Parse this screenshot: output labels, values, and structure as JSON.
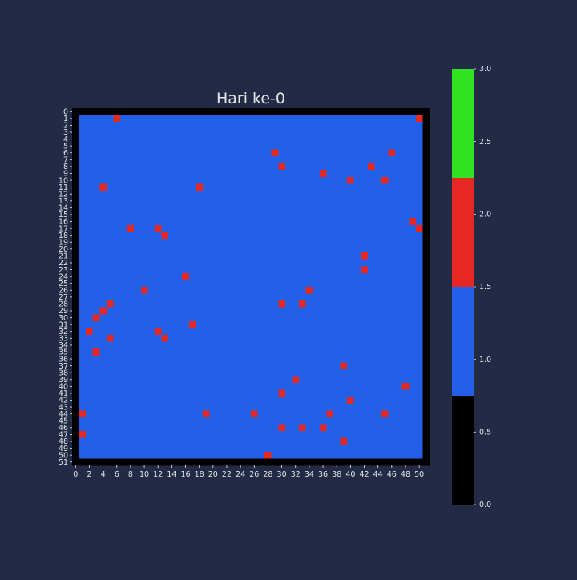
{
  "chart_data": {
    "type": "heatmap",
    "title": "Hari ke-0",
    "xlabel": "",
    "ylabel": "",
    "grid": false,
    "rows": 52,
    "cols": 52,
    "x_tick_labels": [
      "0",
      "2",
      "4",
      "6",
      "8",
      "10",
      "12",
      "14",
      "16",
      "18",
      "20",
      "22",
      "24",
      "26",
      "28",
      "30",
      "32",
      "34",
      "36",
      "38",
      "40",
      "42",
      "44",
      "46",
      "48",
      "50"
    ],
    "y_tick_labels": [
      "0",
      "1",
      "2",
      "3",
      "4",
      "5",
      "6",
      "7",
      "8",
      "9",
      "10",
      "11",
      "12",
      "13",
      "14",
      "15",
      "16",
      "17",
      "18",
      "19",
      "20",
      "21",
      "22",
      "23",
      "24",
      "25",
      "26",
      "27",
      "28",
      "29",
      "30",
      "31",
      "32",
      "33",
      "34",
      "35",
      "36",
      "37",
      "38",
      "39",
      "40",
      "41",
      "42",
      "43",
      "44",
      "45",
      "46",
      "47",
      "48",
      "49",
      "50",
      "51"
    ],
    "default_value": 1,
    "border_value": 0,
    "cells": [
      {
        "value": 2,
        "points": [
          [
            6,
            1
          ],
          [
            50,
            1
          ],
          [
            29,
            6
          ],
          [
            46,
            6
          ],
          [
            30,
            8
          ],
          [
            43,
            8
          ],
          [
            36,
            9
          ],
          [
            40,
            10
          ],
          [
            45,
            10
          ],
          [
            4,
            11
          ],
          [
            18,
            11
          ],
          [
            49,
            16
          ],
          [
            8,
            17
          ],
          [
            12,
            17
          ],
          [
            50,
            17
          ],
          [
            13,
            18
          ],
          [
            42,
            21
          ],
          [
            42,
            23
          ],
          [
            16,
            24
          ],
          [
            10,
            26
          ],
          [
            34,
            26
          ],
          [
            5,
            28
          ],
          [
            30,
            28
          ],
          [
            33,
            28
          ],
          [
            4,
            29
          ],
          [
            3,
            30
          ],
          [
            17,
            31
          ],
          [
            2,
            32
          ],
          [
            12,
            32
          ],
          [
            5,
            33
          ],
          [
            13,
            33
          ],
          [
            3,
            35
          ],
          [
            39,
            37
          ],
          [
            32,
            39
          ],
          [
            48,
            40
          ],
          [
            30,
            41
          ],
          [
            40,
            42
          ],
          [
            1,
            44
          ],
          [
            19,
            44
          ],
          [
            26,
            44
          ],
          [
            37,
            44
          ],
          [
            45,
            44
          ],
          [
            30,
            46
          ],
          [
            33,
            46
          ],
          [
            36,
            46
          ],
          [
            1,
            47
          ],
          [
            39,
            48
          ],
          [
            28,
            50
          ]
        ]
      }
    ],
    "colorbar": {
      "vmin": 0,
      "vmax": 3,
      "bands": [
        {
          "value": 0,
          "range": [
            0,
            0.75
          ],
          "color": "#000000"
        },
        {
          "value": 1,
          "range": [
            0.75,
            1.5
          ],
          "color": "#2360e8"
        },
        {
          "value": 2,
          "range": [
            1.5,
            2.25
          ],
          "color": "#e52824"
        },
        {
          "value": 3,
          "range": [
            2.25,
            3.0
          ],
          "color": "#2fe321"
        }
      ],
      "tick_labels": [
        "0.0",
        "0.5",
        "1.0",
        "1.5",
        "2.0",
        "2.5",
        "3.0"
      ]
    },
    "colors": {
      "background": "#232a45",
      "text": "#e6e6e6"
    }
  }
}
